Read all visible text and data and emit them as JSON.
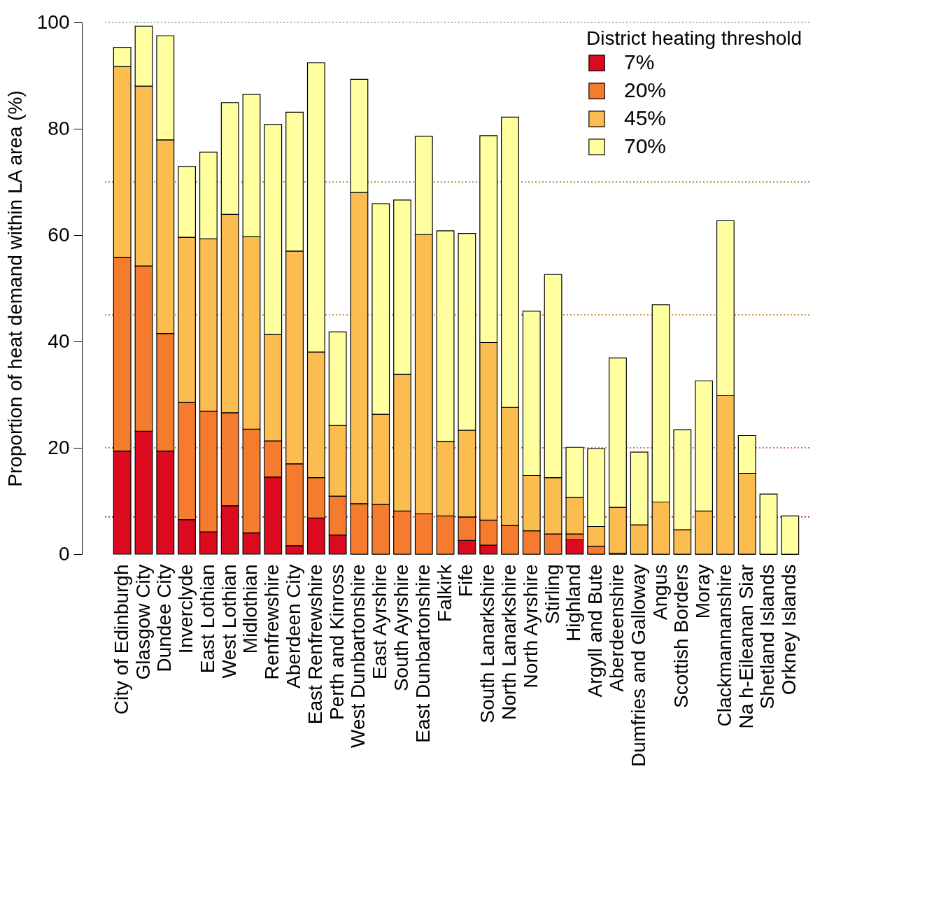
{
  "chart_data": {
    "type": "bar",
    "stacked": true,
    "ylabel": "Proportion of heat demand within LA area (%)",
    "legend_title": "District heating threshold",
    "legend": "top right",
    "grid": false,
    "categories": [
      "City of Edinburgh",
      "Glasgow City",
      "Dundee City",
      "Inverclyde",
      "East Lothian",
      "West Lothian",
      "Midlothian",
      "Renfrewshire",
      "Aberdeen City",
      "East Renfrewshire",
      "Perth and Kinross",
      "West Dunbartonshire",
      "East Ayrshire",
      "South Ayrshire",
      "East Dunbartonshire",
      "Falkirk",
      "Fife",
      "South Lanarkshire",
      "North Lanarkshire",
      "North Ayrshire",
      "Stirling",
      "Highland",
      "Argyll and Bute",
      "Aberdeenshire",
      "Dumfries and Galloway",
      "Angus",
      "Scottish Borders",
      "Moray",
      "Clackmannanshire",
      "Na h-Eileanan Siar",
      "Shetland Islands",
      "Orkney Islands"
    ],
    "ylim": [
      0,
      100
    ],
    "yticks": [
      0,
      20,
      40,
      60,
      80,
      100
    ],
    "series": [
      {
        "name": "7%",
        "color": "#dc0a1e",
        "values": [
          19.4,
          23.1,
          19.4,
          6.5,
          4.2,
          9.1,
          4.0,
          14.5,
          1.6,
          6.8,
          3.6,
          0,
          0,
          0,
          0,
          0,
          2.6,
          1.7,
          0,
          0,
          0,
          2.7,
          0,
          0,
          0,
          0,
          0,
          0,
          0,
          0,
          0,
          0
        ]
      },
      {
        "name": "20%",
        "color": "#f57c2e",
        "values": [
          36.4,
          31.1,
          22.1,
          22.0,
          22.7,
          17.5,
          19.5,
          6.8,
          15.4,
          7.6,
          7.3,
          9.5,
          9.4,
          8.1,
          7.6,
          7.2,
          4.4,
          4.7,
          5.4,
          4.4,
          3.8,
          1.1,
          1.5,
          0.2,
          0,
          0,
          0,
          0,
          0,
          0,
          0,
          0
        ]
      },
      {
        "name": "45%",
        "color": "#fbbd4f",
        "values": [
          35.9,
          33.8,
          36.4,
          31.1,
          32.4,
          37.3,
          36.2,
          20.0,
          40.0,
          23.6,
          13.3,
          58.5,
          16.9,
          25.7,
          52.5,
          14.0,
          16.3,
          33.4,
          22.2,
          10.4,
          10.6,
          6.9,
          3.7,
          8.6,
          5.5,
          9.8,
          4.6,
          8.1,
          29.8,
          15.2,
          0,
          0
        ]
      },
      {
        "name": "70%",
        "color": "#ffffa0",
        "values": [
          3.6,
          11.3,
          19.6,
          13.3,
          16.3,
          21.0,
          26.8,
          39.5,
          26.1,
          54.4,
          17.6,
          21.3,
          39.6,
          32.8,
          18.5,
          39.6,
          37.0,
          38.9,
          54.6,
          30.9,
          38.2,
          9.4,
          14.6,
          28.1,
          13.7,
          37.1,
          18.8,
          24.5,
          32.9,
          7.1,
          11.3,
          7.2
        ]
      }
    ],
    "ref_lines": [
      {
        "axis": "y",
        "value": 100,
        "color": "#999999",
        "line_style": "dotted"
      },
      {
        "axis": "y",
        "value": 70,
        "color": "#8a7a10",
        "line_style": "dotted"
      },
      {
        "axis": "y",
        "value": 45,
        "color": "#c07a10",
        "line_style": "dotted"
      },
      {
        "axis": "y",
        "value": 20,
        "color": "#d04030",
        "line_style": "dotted"
      },
      {
        "axis": "y",
        "value": 7,
        "color": "#b00015",
        "line_style": "dotted"
      }
    ]
  }
}
